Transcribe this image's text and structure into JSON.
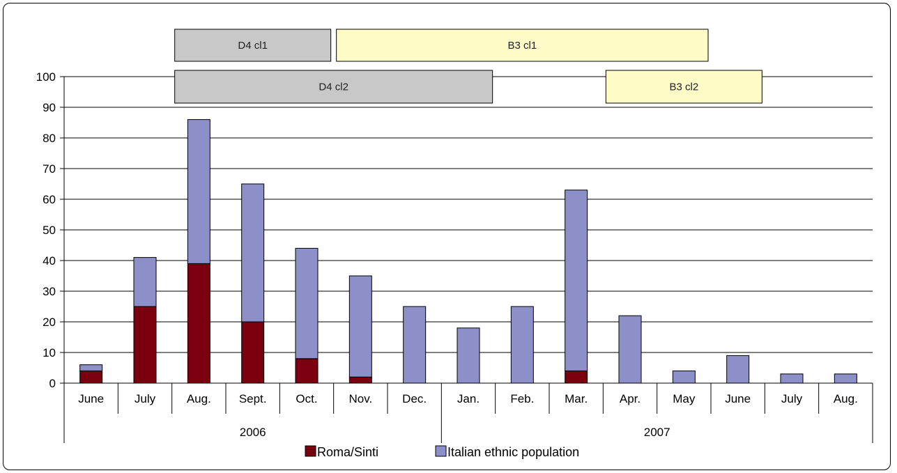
{
  "chart_data": {
    "type": "bar",
    "stacked": true,
    "categories": [
      "June",
      "July",
      "Aug.",
      "Sept.",
      "Oct.",
      "Nov.",
      "Dec.",
      "Jan.",
      "Feb.",
      "Mar.",
      "Apr.",
      "May",
      "June",
      "July",
      "Aug."
    ],
    "groups": [
      {
        "label": "2006",
        "start": 0,
        "end": 6
      },
      {
        "label": "2007",
        "start": 7,
        "end": 14
      }
    ],
    "series": [
      {
        "name": "Roma/Sinti",
        "color": "#7a0010",
        "values": [
          4,
          25,
          39,
          20,
          8,
          2,
          0,
          0,
          0,
          4,
          0,
          0,
          0,
          0,
          0
        ]
      },
      {
        "name": "Italian ethnic population",
        "color": "#8c8fc8",
        "values": [
          2,
          16,
          47,
          45,
          36,
          33,
          25,
          18,
          25,
          59,
          22,
          4,
          9,
          3,
          3
        ]
      }
    ],
    "ylim": [
      0,
      100
    ],
    "yticks": [
      0,
      10,
      20,
      30,
      40,
      50,
      60,
      70,
      80,
      90,
      100
    ],
    "grid": true,
    "legend_position": "bottom",
    "annotations": [
      {
        "label": "D4 cl1",
        "start": 2,
        "end": 4,
        "row": 1,
        "color": "#c8c8c8"
      },
      {
        "label": "B3 cl1",
        "start": 5,
        "end": 11,
        "row": 1,
        "color": "#fdfbc6"
      },
      {
        "label": "D4 cl2",
        "start": 2,
        "end": 7,
        "row": 2,
        "color": "#c8c8c8"
      },
      {
        "label": "B3 cl2",
        "start": 10,
        "end": 12,
        "row": 2,
        "color": "#fdfbc6"
      }
    ]
  }
}
